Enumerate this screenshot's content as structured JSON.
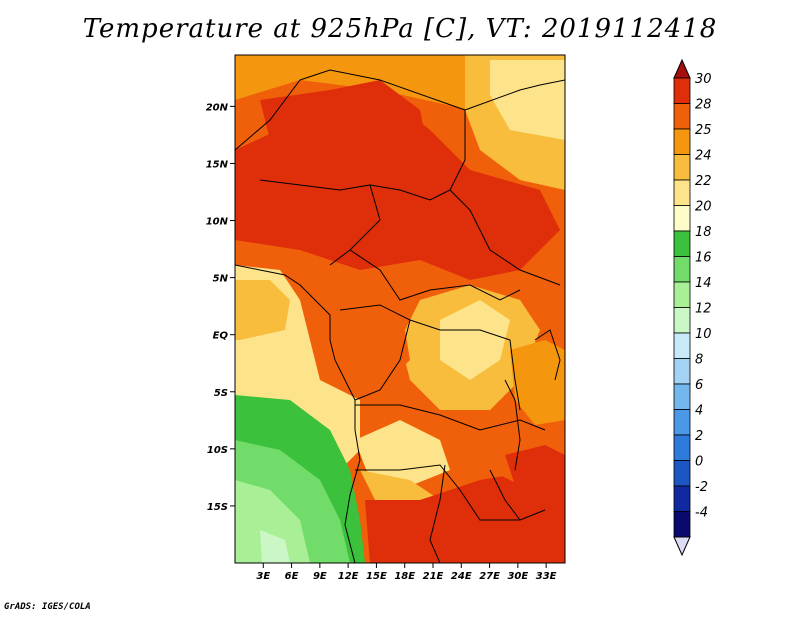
{
  "title": "Temperature at 925hPa [C], VT: 2019112418",
  "credit": "GrADS: IGES/COLA",
  "map": {
    "lat_labels": [
      "20N",
      "15N",
      "10N",
      "5N",
      "EQ",
      "5S",
      "10S",
      "15S"
    ],
    "lat_values": [
      20,
      15,
      10,
      5,
      0,
      -5,
      -10,
      -15
    ],
    "lon_labels": [
      "3E",
      "6E",
      "9E",
      "12E",
      "15E",
      "18E",
      "21E",
      "24E",
      "27E",
      "30E",
      "33E"
    ],
    "lon_values": [
      3,
      6,
      9,
      12,
      15,
      18,
      21,
      24,
      27,
      30,
      33
    ],
    "lat_range": [
      -20,
      24.5
    ],
    "lon_range": [
      0,
      35
    ]
  },
  "colorbar": {
    "labels": [
      "30",
      "28",
      "25",
      "24",
      "22",
      "20",
      "18",
      "16",
      "14",
      "12",
      "10",
      "8",
      "6",
      "4",
      "2",
      "0",
      "-2",
      "-4"
    ],
    "colors": [
      "#a50f0d",
      "#de2f0a",
      "#f05f0a",
      "#f5960f",
      "#f9bd3e",
      "#fde48a",
      "#fefdc9",
      "#3bc13b",
      "#72dc6a",
      "#a8ef96",
      "#cbf7c6",
      "#c7e9fa",
      "#a2d3f5",
      "#74b7ef",
      "#4b98e6",
      "#2e7ada",
      "#1b56c2",
      "#1129a0",
      "#0a0a6e",
      "#dcdcf5"
    ]
  },
  "colors": {
    "hot": "#d8230a",
    "warm": "#ef6410",
    "orange": "#f5960f",
    "yellow": "#f9c246",
    "pale": "#fde487",
    "green": "#3ec63e",
    "lightgreen": "#7ede6e",
    "palegreen": "#b3f0a3"
  }
}
